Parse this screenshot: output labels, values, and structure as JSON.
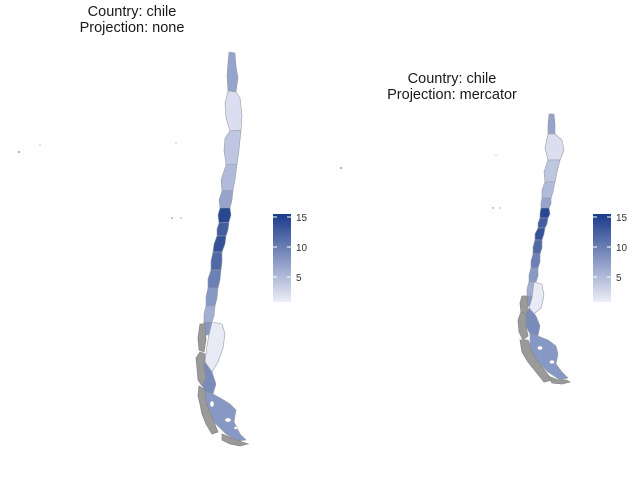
{
  "colors": {
    "low": "#e8eaf6",
    "high": "#1a3a8a",
    "island_fill": "#9a9a9a",
    "border": "#9a9ca8"
  },
  "panels": [
    {
      "title_line1": "Country: chile",
      "title_line2": "Projection: none",
      "legend_ticks": [
        "15",
        "10",
        "5"
      ]
    },
    {
      "title_line1": "Country: chile",
      "title_line2": "Projection: mercator",
      "legend_ticks": [
        "15",
        "10",
        "5"
      ]
    }
  ],
  "regions": [
    {
      "value": 7
    },
    {
      "value": 2
    },
    {
      "value": 4
    },
    {
      "value": 5
    },
    {
      "value": 7
    },
    {
      "value": 15
    },
    {
      "value": 13
    },
    {
      "value": 14
    },
    {
      "value": 12
    },
    {
      "value": 10
    },
    {
      "value": 8
    },
    {
      "value": 6
    },
    {
      "value": 8
    },
    {
      "value": 1
    },
    {
      "value": 9
    },
    {
      "value": 8
    }
  ],
  "legend": {
    "min": 1,
    "max": 16
  }
}
